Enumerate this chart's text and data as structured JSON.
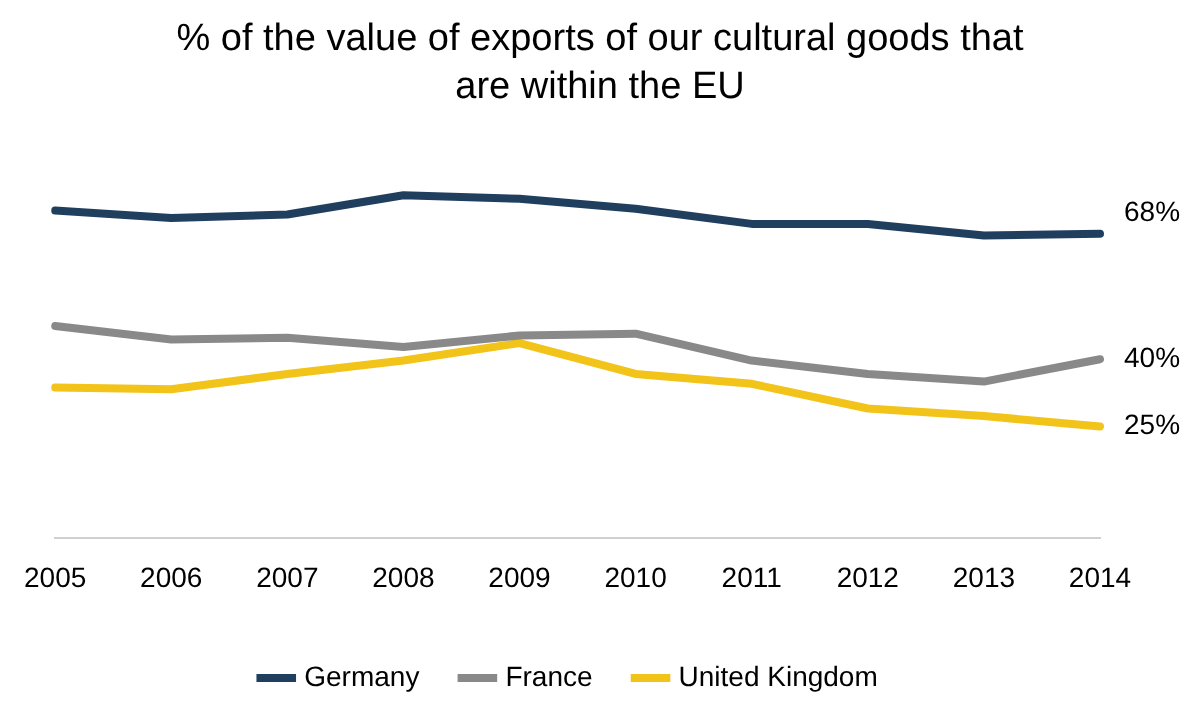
{
  "chart_data": {
    "type": "line",
    "title": "% of the value of exports of our cultural goods that are within the EU",
    "categories": [
      "2005",
      "2006",
      "2007",
      "2008",
      "2009",
      "2010",
      "2011",
      "2012",
      "2013",
      "2014"
    ],
    "series": [
      {
        "name": "Germany",
        "color": "#203f5e",
        "values": [
          73.2,
          71.5,
          72.3,
          76.6,
          75.8,
          73.6,
          70.2,
          70.2,
          67.6,
          68
        ],
        "value_labels": [
          null,
          null,
          null,
          null,
          null,
          null,
          null,
          null,
          null,
          "68%"
        ]
      },
      {
        "name": "France",
        "color": "#898989",
        "values": [
          47.4,
          44.4,
          44.8,
          42.7,
          45.3,
          45.7,
          39.7,
          36.7,
          35.0,
          40
        ],
        "value_labels": [
          null,
          null,
          null,
          null,
          null,
          null,
          null,
          null,
          null,
          "40%"
        ]
      },
      {
        "name": "United Kingdom",
        "color": "#f2c318",
        "values": [
          33.7,
          33.3,
          36.7,
          39.7,
          43.6,
          36.7,
          34.5,
          29.0,
          27.3,
          25
        ],
        "value_labels": [
          null,
          null,
          null,
          null,
          null,
          null,
          null,
          null,
          null,
          "25%"
        ]
      }
    ],
    "grid": false,
    "legend": "bottom",
    "marker": "none",
    "line_style": "solid"
  }
}
